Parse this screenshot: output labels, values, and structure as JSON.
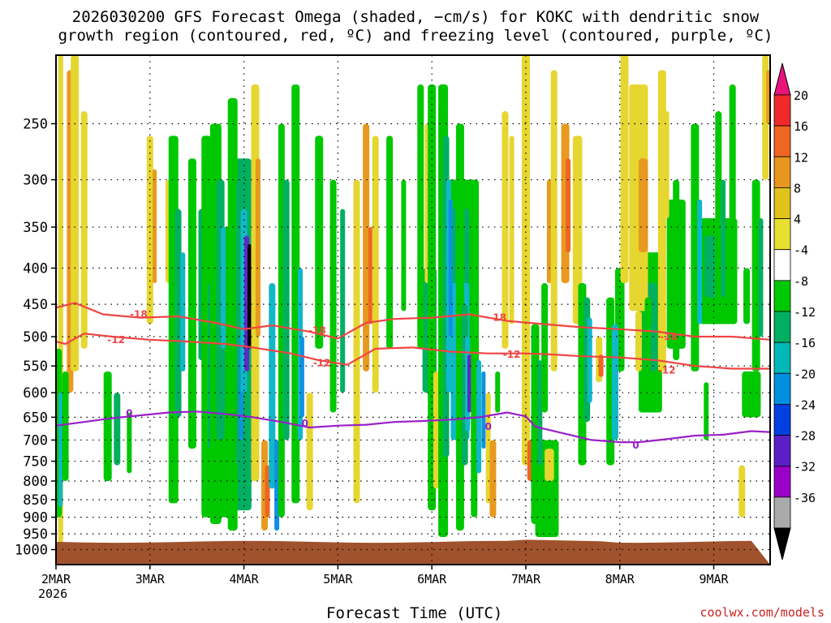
{
  "chart_data": {
    "type": "heatmap",
    "title": "2026030200 GFS Forecast Omega (shaded, −cm/s) for KOKC with dendritic snow",
    "subtitle": "growth region (contoured, red, ºC) and freezing level (contoured, purple, ºC)",
    "xlabel": "Forecast Time (UTC)",
    "credit": "coolwx.com/models",
    "x_ticks": [
      "2MAR",
      "3MAR",
      "4MAR",
      "5MAR",
      "6MAR",
      "7MAR",
      "8MAR",
      "9MAR"
    ],
    "x_year": "2026",
    "xlim_days": [
      0,
      7.6
    ],
    "y_ticks": [
      250,
      300,
      350,
      400,
      450,
      500,
      550,
      600,
      650,
      700,
      750,
      800,
      850,
      900,
      950,
      1000
    ],
    "ylim_hpa": [
      200,
      1050
    ],
    "y_scale": "log",
    "grid": true,
    "colorbar": {
      "labels": [
        "20",
        "16",
        "12",
        "8",
        "4",
        "-4",
        "-8",
        "-12",
        "-16",
        "-20",
        "-24",
        "-28",
        "-32",
        "-36"
      ],
      "colors": [
        "#e8147c",
        "#f02a2a",
        "#ee6622",
        "#e8961e",
        "#e0c21c",
        "#e8e030",
        "#ffffff",
        "#00c800",
        "#00b060",
        "#00b8b8",
        "#0090e0",
        "#0040e0",
        "#5a20c8",
        "#9a00c8",
        "#aaaaaa",
        "#000000"
      ]
    },
    "contours": [
      {
        "name": "dgz_top",
        "label": "-18",
        "color": "#f04444",
        "x": [
          0,
          0.2,
          0.5,
          0.9,
          1.3,
          1.7,
          2.0,
          2.3,
          2.7,
          3.0,
          3.3,
          3.6,
          4.0,
          4.4,
          4.8,
          5.2,
          5.6,
          6.0,
          6.4,
          6.8,
          7.2,
          7.6
        ],
        "y": [
          455,
          448,
          465,
          470,
          468,
          478,
          488,
          482,
          492,
          503,
          478,
          472,
          470,
          465,
          475,
          480,
          485,
          488,
          492,
          500,
          500,
          505
        ]
      },
      {
        "name": "dgz_bottom",
        "label": "-12",
        "color": "#f04444",
        "x": [
          0,
          0.1,
          0.3,
          0.6,
          1.0,
          1.4,
          1.8,
          2.1,
          2.5,
          2.8,
          3.1,
          3.4,
          3.8,
          4.2,
          4.6,
          5.0,
          5.3,
          5.6,
          6.0,
          6.4,
          6.8,
          7.2,
          7.6
        ],
        "y": [
          508,
          512,
          495,
          500,
          505,
          508,
          512,
          518,
          528,
          540,
          548,
          520,
          518,
          525,
          528,
          528,
          530,
          533,
          535,
          540,
          550,
          555,
          555
        ]
      },
      {
        "name": "freezing_level",
        "label": "0",
        "color": "#9a20c8",
        "x": [
          0,
          0.3,
          0.6,
          0.9,
          1.2,
          1.5,
          1.8,
          2.1,
          2.4,
          2.7,
          3.0,
          3.3,
          3.6,
          3.9,
          4.2,
          4.5,
          4.8,
          5.0,
          5.1,
          5.4,
          5.7,
          6.0,
          6.2,
          6.5,
          6.8,
          7.1,
          7.4,
          7.6
        ],
        "y": [
          668,
          660,
          652,
          646,
          640,
          638,
          643,
          650,
          660,
          672,
          668,
          666,
          660,
          658,
          655,
          650,
          640,
          648,
          670,
          685,
          700,
          705,
          705,
          698,
          690,
          688,
          680,
          682
        ]
      }
    ],
    "contour_labels": [
      {
        "text": "-18",
        "x": 0.88,
        "y": 465
      },
      {
        "text": "-18",
        "x": 2.78,
        "y": 490
      },
      {
        "text": "-18",
        "x": 4.7,
        "y": 470
      },
      {
        "text": "-18",
        "x": 6.52,
        "y": 500
      },
      {
        "text": "-12",
        "x": 0.64,
        "y": 505
      },
      {
        "text": "-12",
        "x": 2.83,
        "y": 545
      },
      {
        "text": "-12",
        "x": 4.85,
        "y": 530
      },
      {
        "text": "-12",
        "x": 6.5,
        "y": 558
      },
      {
        "text": "0",
        "x": 0.78,
        "y": 642
      },
      {
        "text": "0",
        "x": 2.65,
        "y": 663
      },
      {
        "text": "0",
        "x": 4.6,
        "y": 670
      },
      {
        "text": "0",
        "x": 6.17,
        "y": 712
      }
    ]
  }
}
